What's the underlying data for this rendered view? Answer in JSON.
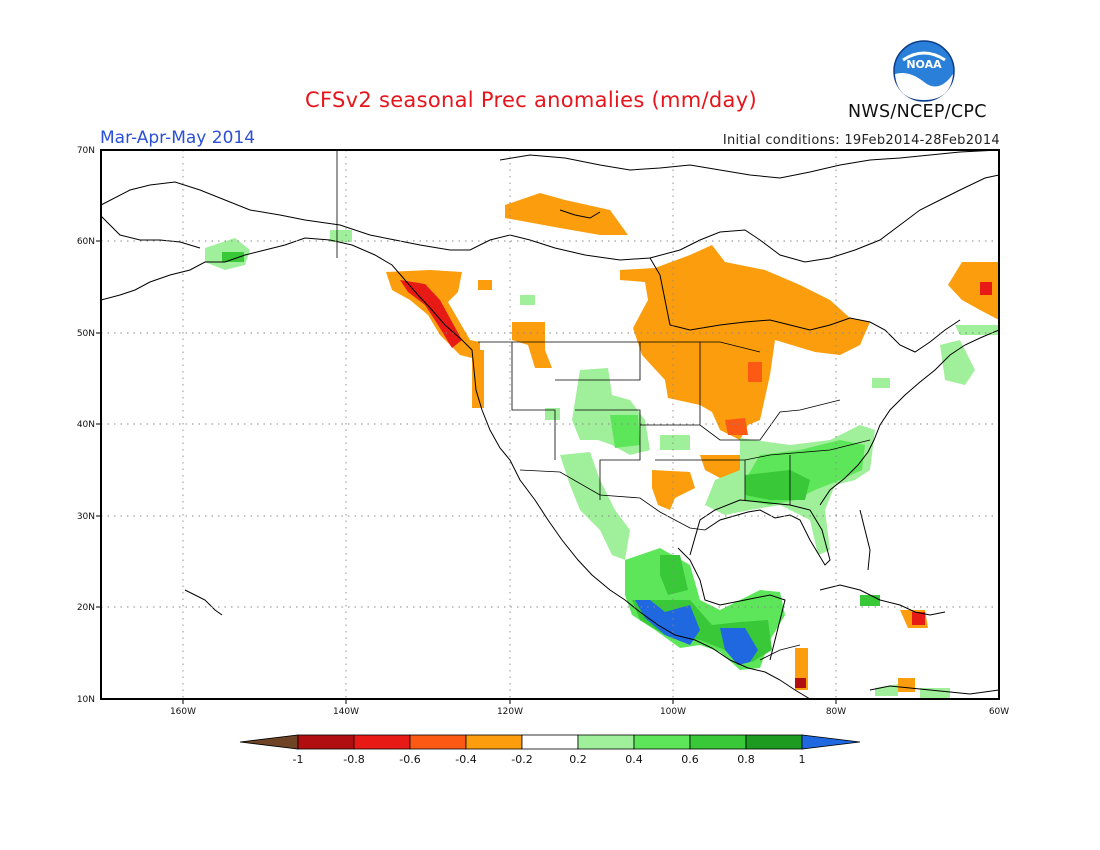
{
  "title": "CFSv2 seasonal Prec anomalies (mm/day)",
  "season": "Mar-Apr-May 2014",
  "initial_conditions": "Initial conditions: 19Feb2014-28Feb2014",
  "organization": "NWS/NCEP/CPC",
  "logo_text": "NOAA",
  "lat_labels": [
    "70N",
    "60N",
    "50N",
    "40N",
    "30N",
    "20N",
    "10N"
  ],
  "lon_labels": [
    "160W",
    "140W",
    "120W",
    "100W",
    "80W",
    "60W"
  ],
  "colorbar": {
    "labels": [
      "-1",
      "-0.8",
      "-0.6",
      "-0.4",
      "-0.2",
      "0.2",
      "0.4",
      "0.6",
      "0.8",
      "1"
    ],
    "colors": [
      "#6e4326",
      "#b00e10",
      "#e81a16",
      "#fc5a14",
      "#fb9d0c",
      "#ffffff",
      "#a0ef9a",
      "#5ee65a",
      "#38c838",
      "#1d9a20",
      "#1f68df"
    ]
  }
}
